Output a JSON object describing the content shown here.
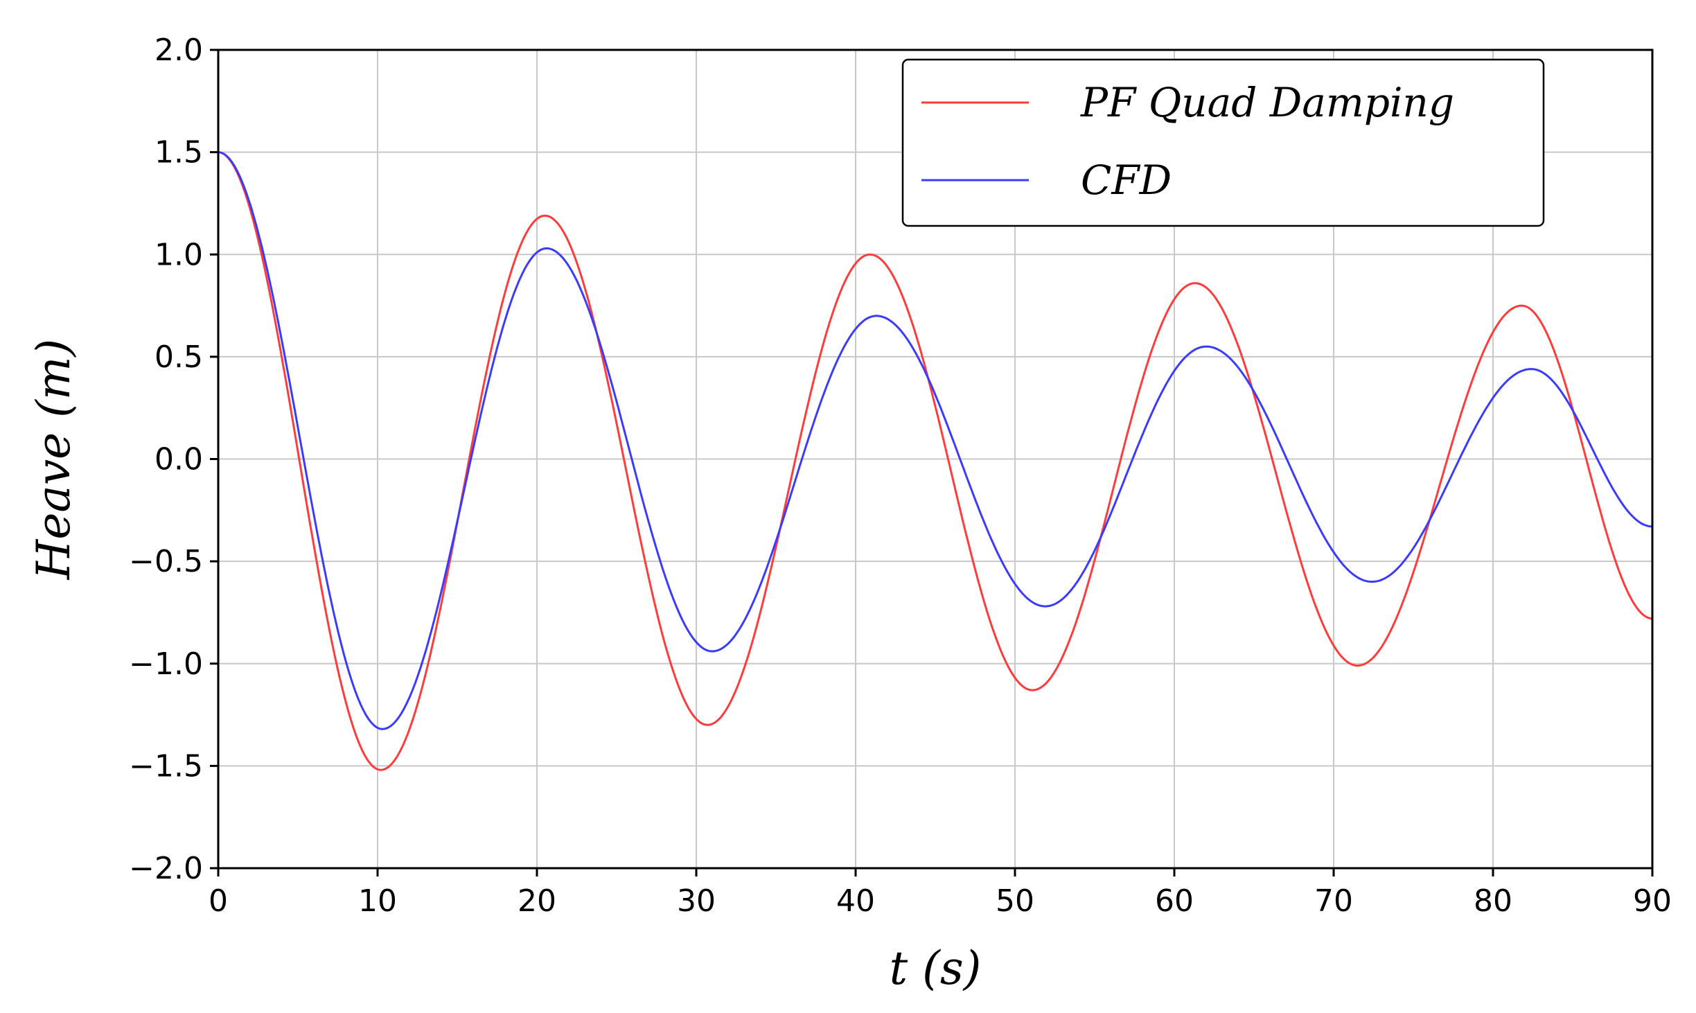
{
  "chart_data": {
    "type": "line",
    "title": "",
    "xlabel": "t (s)",
    "ylabel": "Heave (m)",
    "xlim": [
      0,
      90
    ],
    "ylim": [
      -2.0,
      2.0
    ],
    "x_ticks": [
      0,
      10,
      20,
      30,
      40,
      50,
      60,
      70,
      80,
      90
    ],
    "y_ticks": [
      2.0,
      1.5,
      1.0,
      0.5,
      0.0,
      -0.5,
      -1.0,
      -1.5,
      -2.0
    ],
    "x_tick_labels": [
      "0",
      "10",
      "20",
      "30",
      "40",
      "50",
      "60",
      "70",
      "80",
      "90"
    ],
    "y_tick_labels": [
      "2.0",
      "1.5",
      "1.0",
      "0.5",
      "0.0",
      "−0.5",
      "−1.0",
      "−1.5",
      "−2.0"
    ],
    "grid": true,
    "legend_position": "top-right",
    "series": [
      {
        "name": "PF Quad Damping",
        "color": "#ff3b3b",
        "x": [
          0,
          10.2,
          20.5,
          30.7,
          40.9,
          51.1,
          61.3,
          71.5,
          81.8,
          90
        ],
        "y": [
          1.5,
          -1.52,
          1.19,
          -1.3,
          1.0,
          -1.13,
          0.86,
          -1.01,
          0.75,
          -0.78
        ]
      },
      {
        "name": "CFD",
        "color": "#3b3bff",
        "x": [
          0,
          10.3,
          20.6,
          31.0,
          41.3,
          51.9,
          62.0,
          72.4,
          82.4,
          90
        ],
        "y": [
          1.5,
          -1.32,
          1.03,
          -0.94,
          0.7,
          -0.72,
          0.55,
          -0.6,
          0.44,
          -0.33
        ]
      }
    ]
  }
}
